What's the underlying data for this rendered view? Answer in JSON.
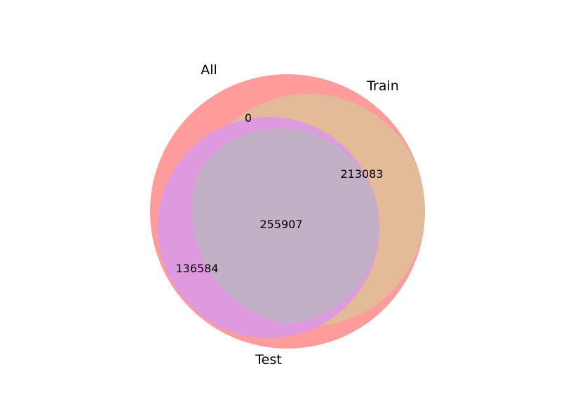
{
  "venn": {
    "sets": [
      {
        "name": "All",
        "color": "#fe8a8a"
      },
      {
        "name": "Train",
        "color": "#f3c49c"
      },
      {
        "name": "Test",
        "color": "#cc99e6"
      }
    ],
    "regions": {
      "all_only": "0",
      "all_train": "213083",
      "all_train_test": "255907",
      "all_test": "136584"
    },
    "overlap_color": "#c1b0c6"
  }
}
